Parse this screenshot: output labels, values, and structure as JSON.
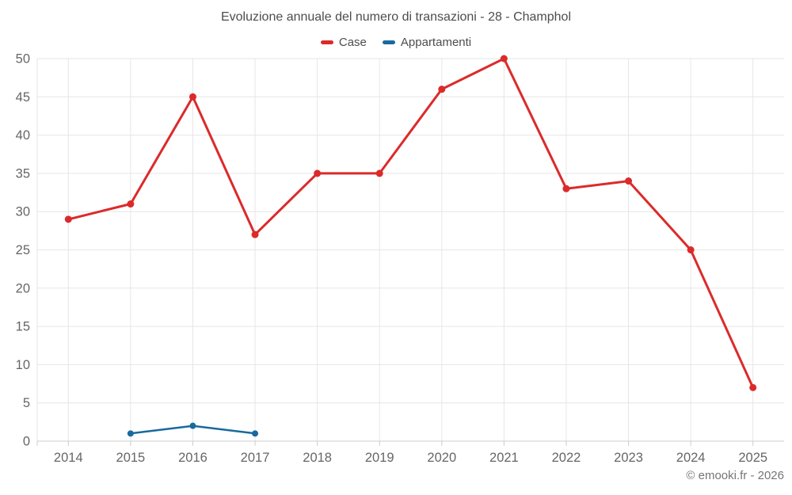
{
  "header": {
    "title": "Evoluzione annuale del numero di transazioni - 28 - Champhol"
  },
  "footer": {
    "copyright": "© emooki.fr - 2026"
  },
  "colors": {
    "grid": "#e6e6e6",
    "axis": "#cccccc",
    "tick_label": "#666666",
    "title_text": "#4d4d4d",
    "case_red": "#dc2a2a",
    "appartamenti_blue": "#19699f"
  },
  "chart_data": {
    "type": "line",
    "title": "Evoluzione annuale del numero di transazioni - 28 - Champhol",
    "categories": [
      "2014",
      "2015",
      "2016",
      "2017",
      "2018",
      "2019",
      "2020",
      "2021",
      "2022",
      "2023",
      "2024",
      "2025"
    ],
    "series": [
      {
        "name": "Case",
        "color": "#dc2a2a",
        "values": [
          29,
          31,
          45,
          27,
          35,
          35,
          46,
          50,
          33,
          34,
          25,
          7
        ]
      },
      {
        "name": "Appartamenti",
        "color": "#19699f",
        "values": [
          null,
          1,
          2,
          1,
          null,
          null,
          null,
          null,
          null,
          null,
          null,
          null
        ]
      }
    ],
    "xlabel": "",
    "ylabel": "",
    "ylim": [
      0,
      50
    ],
    "yticks": [
      0,
      5,
      10,
      15,
      20,
      25,
      30,
      35,
      40,
      45,
      50
    ],
    "grid": true,
    "legend_position": "top"
  }
}
